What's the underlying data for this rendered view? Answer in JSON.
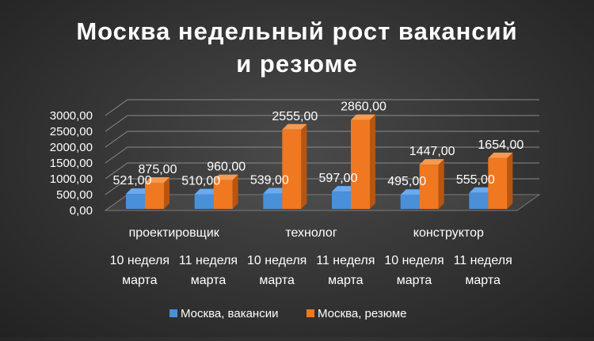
{
  "chart_data": {
    "type": "bar",
    "style": "3d-clustered-column",
    "title": "Москва недельный рост вакансий и резюме",
    "title_lines": [
      "Москва недельный рост вакансий",
      "и резюме"
    ],
    "x_group_labels": [
      "проектировщик",
      "технолог",
      "конструктор"
    ],
    "categories": [
      [
        "10 неделя",
        "марта"
      ],
      [
        "11 неделя",
        "марта"
      ],
      [
        "10 неделя",
        "марта"
      ],
      [
        "11 неделя",
        "марта"
      ],
      [
        "10 неделя",
        "марта"
      ],
      [
        "11 неделя",
        "марта"
      ]
    ],
    "group_of_category": [
      0,
      0,
      1,
      1,
      2,
      2
    ],
    "series": [
      {
        "name": "Москва, вакансии",
        "color": "#4a90d9",
        "color_side": "#2f6aa8",
        "color_top": "#6aaaf0",
        "values": [
          521,
          510,
          539,
          597,
          495,
          555
        ],
        "labels": [
          "521,00",
          "510,00",
          "539,00",
          "597,00",
          "495,00",
          "555,00"
        ]
      },
      {
        "name": "Москва, резюме",
        "color": "#f07820",
        "color_side": "#b85510",
        "color_top": "#f59a50",
        "values": [
          875,
          960,
          2555,
          2860,
          1447,
          1654
        ],
        "labels": [
          "875,00",
          "960,00",
          "2555,00",
          "2860,00",
          "1447,00",
          "1654,00"
        ]
      }
    ],
    "yticks": [
      "0,00",
      "500,00",
      "1000,00",
      "1500,00",
      "2000,00",
      "2500,00",
      "3000,00"
    ],
    "ylim": [
      0,
      3000
    ],
    "grid": true,
    "legend_position": "bottom"
  }
}
